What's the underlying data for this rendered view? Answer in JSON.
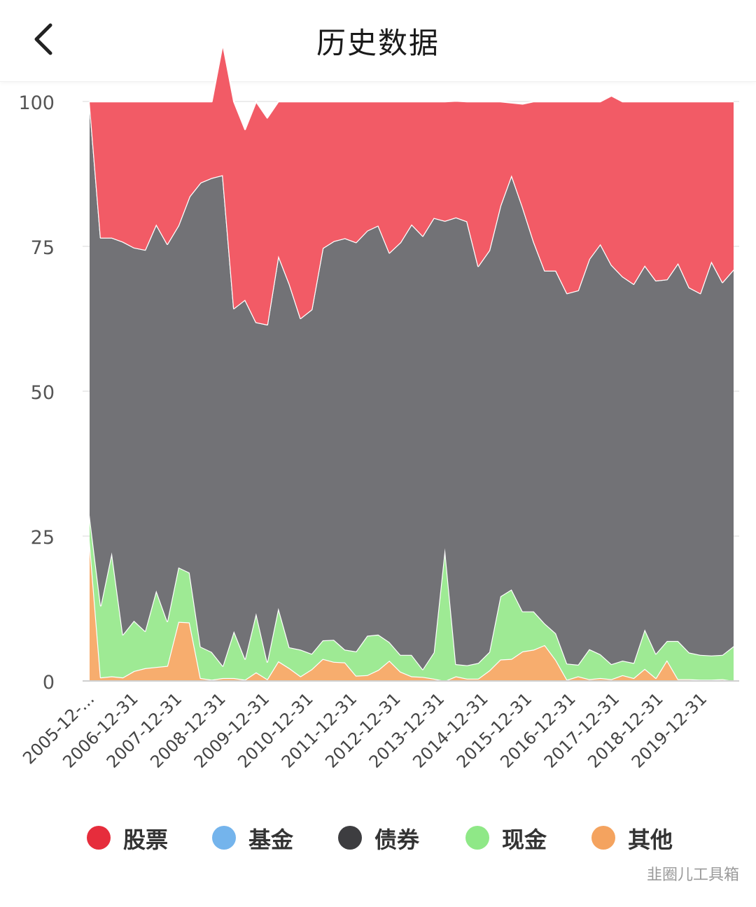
{
  "header": {
    "title": "历史数据",
    "back_icon": "chevron-left-icon"
  },
  "watermark": "韭圈儿工具箱",
  "chart_data": {
    "type": "area",
    "stacked": true,
    "ylim": [
      0,
      100
    ],
    "yticks": [
      "0",
      "25",
      "50",
      "75",
      "100"
    ],
    "grid": true,
    "legend_position": "bottom",
    "xtick_labels": [
      "2005-12-...",
      "2006-12-31",
      "2007-12-31",
      "2008-12-31",
      "2009-12-31",
      "2010-12-31",
      "2011-12-31",
      "2012-12-31",
      "2013-12-31",
      "2014-12-31",
      "2015-12-31",
      "2016-12-31",
      "2017-12-31",
      "2018-12-31",
      "2019-12-31"
    ],
    "series": [
      {
        "name": "股票",
        "color": "#f25b66",
        "values": [
          0,
          23.5,
          23.5,
          24.2,
          25.2,
          25.6,
          21.2,
          24.6,
          21.4,
          16.4,
          14.0,
          13.2,
          22.7,
          35.7,
          29.4,
          38.1,
          35.7,
          26.6,
          31.5,
          37.4,
          35.9,
          25.3,
          24.1,
          23.6,
          24.3,
          22.3,
          21.4,
          26.1,
          24.3,
          21.2,
          23.2,
          20.1,
          20.6,
          20.1,
          20.7,
          28.4,
          25.7,
          18.0,
          12.5,
          17.8,
          24.2,
          29.2,
          29.2,
          33.1,
          32.6,
          27.2,
          24.6,
          29.2,
          30.2,
          31.5,
          28.3,
          30.9,
          30.7,
          27.9,
          32.1,
          33.1,
          27.6,
          31.2,
          29.0
        ]
      },
      {
        "name": "基金",
        "color": "#74b4ec",
        "values": [
          0,
          0,
          0,
          0,
          0,
          0,
          0,
          0,
          0,
          0,
          0,
          0,
          0,
          0,
          0,
          0,
          0,
          0,
          0,
          0,
          0,
          0,
          0,
          0,
          0,
          0,
          0,
          0,
          0,
          0,
          0,
          0,
          0,
          0,
          0,
          0,
          0,
          0,
          0,
          0,
          0,
          0,
          0,
          0,
          0,
          0,
          0,
          0,
          0,
          0,
          0,
          0,
          0,
          0,
          0,
          0,
          0,
          0,
          0
        ]
      },
      {
        "name": "债券",
        "color": "#727276",
        "values": [
          71.4,
          63.5,
          54.3,
          67.8,
          64.4,
          65.8,
          63.2,
          65.1,
          59.0,
          64.9,
          80.1,
          81.8,
          84.7,
          55.7,
          62.0,
          50.2,
          58.2,
          60.8,
          62.7,
          57.2,
          59.4,
          67.7,
          68.8,
          71.0,
          70.6,
          69.9,
          70.6,
          67.2,
          71.2,
          74.3,
          74.8,
          75.0,
          56.5,
          77.1,
          76.6,
          68.5,
          69.3,
          67.4,
          71.5,
          69.8,
          63.8,
          60.9,
          62.6,
          63.9,
          64.6,
          67.3,
          70.8,
          68.9,
          66.3,
          65.4,
          62.8,
          64.4,
          62.4,
          65.2,
          63.0,
          62.4,
          68.0,
          64.3,
          65.0
        ]
      },
      {
        "name": "现金",
        "color": "#9eea94",
        "values": [
          4.3,
          12.4,
          21.4,
          7.4,
          8.7,
          6.4,
          13.2,
          7.7,
          9.4,
          8.6,
          5.4,
          4.8,
          2.1,
          8.1,
          3.6,
          10.2,
          3.0,
          9.2,
          3.6,
          4.6,
          2.7,
          3.2,
          3.8,
          2.2,
          4.2,
          6.8,
          6.1,
          3.2,
          2.9,
          3.7,
          1.3,
          4.5,
          22.9,
          2.1,
          2.3,
          2.7,
          3.2,
          10.9,
          12.0,
          6.9,
          6.6,
          3.7,
          4.6,
          2.8,
          2.0,
          5.2,
          4.1,
          2.6,
          2.5,
          2.6,
          6.8,
          4.2,
          3.3,
          6.6,
          4.6,
          4.3,
          4.2,
          4.2,
          6.0
        ]
      },
      {
        "name": "其他",
        "color": "#f7ad6e",
        "values": [
          24.3,
          0.6,
          0.8,
          0.6,
          1.7,
          2.2,
          2.4,
          2.6,
          10.2,
          10.1,
          0.5,
          0.2,
          0.5,
          0.5,
          0.2,
          1.5,
          0.3,
          3.4,
          2.2,
          0.8,
          2.0,
          3.8,
          3.3,
          3.2,
          0.9,
          1.0,
          1.9,
          3.5,
          1.6,
          0.8,
          0.7,
          0.4,
          0,
          0.8,
          0.4,
          0.4,
          1.8,
          3.7,
          3.8,
          5.1,
          5.4,
          6.2,
          3.6,
          0.2,
          0.8,
          0.3,
          0.5,
          0.3,
          1.0,
          0.5,
          2.1,
          0.5,
          3.6,
          0.3,
          0.3,
          0.2,
          0.2,
          0.3,
          0.0
        ]
      }
    ]
  },
  "legend": [
    {
      "label": "股票",
      "color": "#e62d3c"
    },
    {
      "label": "基金",
      "color": "#74b4ec"
    },
    {
      "label": "债券",
      "color": "#3d3d40"
    },
    {
      "label": "现金",
      "color": "#8fe887"
    },
    {
      "label": "其他",
      "color": "#f4a35f"
    }
  ]
}
